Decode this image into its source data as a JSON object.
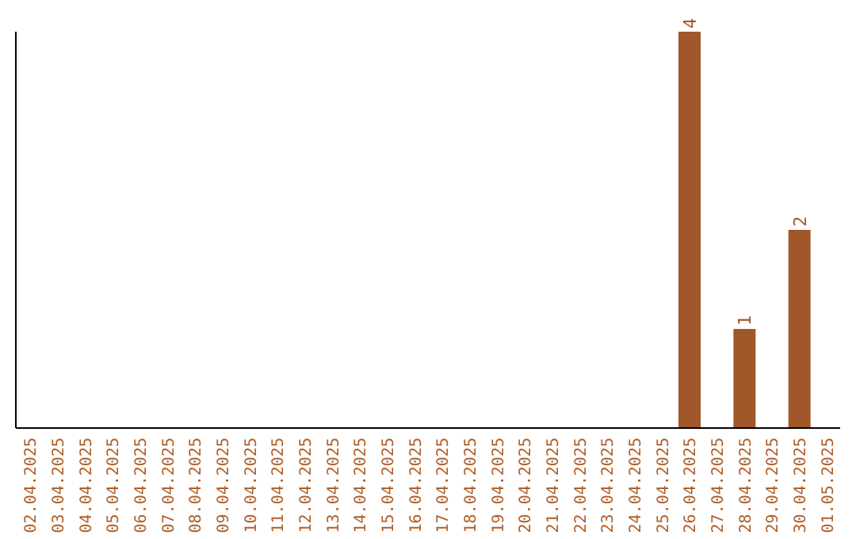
{
  "chart_data": {
    "type": "bar",
    "categories": [
      "02.04.2025",
      "03.04.2025",
      "04.04.2025",
      "05.04.2025",
      "06.04.2025",
      "07.04.2025",
      "08.04.2025",
      "09.04.2025",
      "10.04.2025",
      "11.04.2025",
      "12.04.2025",
      "13.04.2025",
      "14.04.2025",
      "15.04.2025",
      "16.04.2025",
      "17.04.2025",
      "18.04.2025",
      "19.04.2025",
      "20.04.2025",
      "21.04.2025",
      "22.04.2025",
      "23.04.2025",
      "24.04.2025",
      "25.04.2025",
      "26.04.2025",
      "27.04.2025",
      "28.04.2025",
      "29.04.2025",
      "30.04.2025",
      "01.05.2025"
    ],
    "values": [
      null,
      null,
      null,
      null,
      null,
      null,
      null,
      null,
      null,
      null,
      null,
      null,
      null,
      null,
      null,
      null,
      null,
      null,
      null,
      null,
      null,
      null,
      null,
      null,
      4,
      null,
      1,
      null,
      2,
      null
    ],
    "data_labels": true,
    "color": "#a0572a",
    "grid": false,
    "legend": false
  }
}
